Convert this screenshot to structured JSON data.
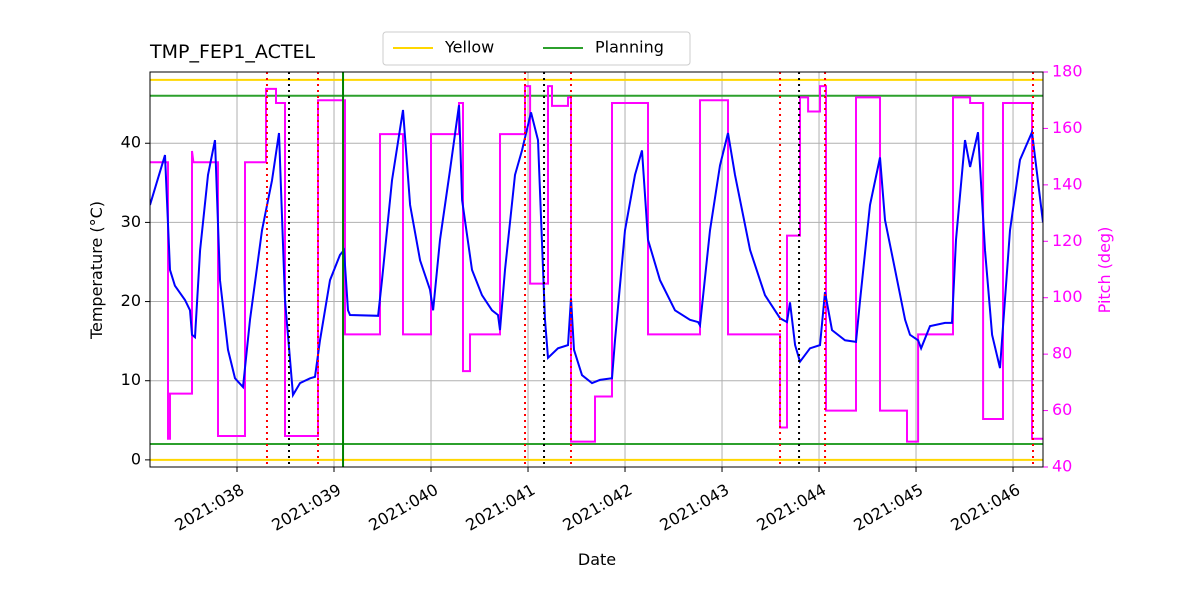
{
  "chart_data": {
    "type": "line",
    "title": "TMP_FEP1_ACTEL",
    "xlabel": "Date",
    "ylabel": "Temperature (°C)",
    "y2label": "Pitch (deg)",
    "y2color": "#ff00ff",
    "grid": true,
    "legend": "top",
    "xlim": [
      37.103,
      46.309
    ],
    "xticks": [
      {
        "value": 38,
        "label": "2021:038"
      },
      {
        "value": 39,
        "label": "2021:039"
      },
      {
        "value": 40,
        "label": "2021:040"
      },
      {
        "value": 41,
        "label": "2021:041"
      },
      {
        "value": 42,
        "label": "2021:042"
      },
      {
        "value": 43,
        "label": "2021:043"
      },
      {
        "value": 44,
        "label": "2021:044"
      },
      {
        "value": 45,
        "label": "2021:045"
      },
      {
        "value": 46,
        "label": "2021:046"
      }
    ],
    "ylim": [
      -0.9,
      49
    ],
    "yticks": [
      0,
      10,
      20,
      30,
      40
    ],
    "y2lim": [
      40,
      180
    ],
    "y2ticks": [
      40,
      60,
      80,
      100,
      120,
      140,
      160,
      180
    ],
    "hlines": [
      {
        "name": "Yellow",
        "color": "#ffd700",
        "values": [
          0,
          48
        ]
      },
      {
        "name": "Planning",
        "color": "#2ca02c",
        "values": [
          2,
          46
        ]
      }
    ],
    "vlines": [
      {
        "color": "#ff0000",
        "style": "dotted",
        "x": [
          38.309,
          38.835,
          40.969,
          41.443,
          43.598,
          44.062,
          46.206
        ]
      },
      {
        "color": "#000000",
        "style": "dotted",
        "x": [
          38.536,
          41.165,
          43.794
        ]
      },
      {
        "color": "#008000",
        "style": "solid",
        "x": [
          39.093
        ]
      }
    ],
    "series": [
      {
        "color": "#0000ff",
        "x": [
          37.103,
          37.258,
          37.309,
          37.36,
          37.464,
          37.515,
          37.536,
          37.567,
          37.619,
          37.701,
          37.773,
          37.825,
          37.907,
          37.979,
          38.062,
          38.134,
          38.258,
          38.361,
          38.433,
          38.495,
          38.577,
          38.649,
          38.753,
          38.804,
          38.856,
          38.959,
          39.062,
          39.103,
          39.144,
          39.165,
          39.454,
          39.495,
          39.598,
          39.711,
          39.784,
          39.887,
          39.99,
          40.021,
          40.093,
          40.196,
          40.289,
          40.32,
          40.423,
          40.526,
          40.629,
          40.691,
          40.711,
          40.763,
          40.866,
          40.938,
          41.031,
          41.103,
          41.175,
          41.206,
          41.309,
          41.412,
          41.443,
          41.474,
          41.557,
          41.66,
          41.742,
          41.866,
          41.897,
          42.0,
          42.103,
          42.175,
          42.237,
          42.361,
          42.515,
          42.67,
          42.753,
          42.773,
          42.876,
          42.979,
          43.062,
          43.134,
          43.289,
          43.443,
          43.598,
          43.67,
          43.701,
          43.753,
          43.804,
          43.907,
          44.01,
          44.062,
          44.134,
          44.268,
          44.381,
          44.423,
          44.526,
          44.629,
          44.68,
          44.784,
          44.887,
          44.938,
          45.021,
          45.052,
          45.144,
          45.299,
          45.371,
          45.412,
          45.505,
          45.557,
          45.639,
          45.711,
          45.784,
          45.866,
          45.969,
          46.072,
          46.196,
          46.309
        ],
        "values": [
          32.2,
          38.5,
          24,
          22,
          20.2,
          18.9,
          15.8,
          15.5,
          26.5,
          36,
          40.4,
          22.7,
          13.9,
          10.3,
          9.2,
          17.7,
          29,
          35.3,
          41.3,
          20.2,
          8.2,
          9.7,
          10.3,
          10.5,
          15.1,
          22.7,
          25.9,
          26.5,
          18.9,
          18.3,
          18.2,
          22.7,
          35.3,
          44.2,
          32.2,
          25.2,
          21.5,
          18.9,
          27.8,
          36.6,
          44.8,
          32.8,
          24,
          20.8,
          18.9,
          18.3,
          16.4,
          24,
          36,
          39.1,
          43.9,
          40.4,
          17.7,
          12.9,
          14.1,
          14.5,
          20.4,
          13.9,
          10.7,
          9.7,
          10.1,
          10.3,
          15.1,
          29,
          36,
          39.1,
          27.8,
          22.7,
          18.9,
          17.7,
          17.4,
          17,
          29,
          37.2,
          41.3,
          36,
          26.5,
          20.8,
          17.9,
          17.4,
          19.9,
          14.5,
          12.4,
          14.1,
          14.5,
          21.2,
          16.4,
          15.1,
          14.9,
          20.2,
          32.2,
          38.2,
          30.3,
          24,
          17.7,
          15.8,
          15.1,
          14.1,
          16.9,
          17.3,
          17.3,
          27.8,
          40.4,
          37,
          41.4,
          26.5,
          15.8,
          11.6,
          29,
          37.9,
          41.4,
          30
        ]
      },
      {
        "color": "#ff00ff",
        "axis": "y2",
        "x": [
          37.103,
          37.289,
          37.289,
          37.309,
          37.309,
          37.536,
          37.536,
          37.55,
          37.804,
          37.804,
          38.082,
          38.082,
          38.299,
          38.299,
          38.402,
          38.402,
          38.495,
          38.495,
          38.835,
          38.835,
          39.113,
          39.113,
          39.474,
          39.474,
          39.711,
          39.711,
          40.0,
          40.0,
          40.289,
          40.289,
          40.33,
          40.33,
          40.402,
          40.402,
          40.711,
          40.711,
          40.969,
          40.969,
          41.021,
          41.021,
          41.206,
          41.206,
          41.247,
          41.247,
          41.412,
          41.412,
          41.443,
          41.443,
          41.691,
          41.691,
          41.866,
          41.866,
          42.237,
          42.237,
          42.773,
          42.773,
          43.062,
          43.062,
          43.598,
          43.598,
          43.67,
          43.67,
          43.804,
          43.804,
          43.887,
          43.887,
          44.01,
          44.01,
          44.072,
          44.072,
          44.381,
          44.381,
          44.629,
          44.629,
          44.907,
          44.907,
          45.021,
          45.021,
          45.381,
          45.381,
          45.557,
          45.557,
          45.691,
          45.691,
          45.897,
          45.897,
          46.196,
          46.196,
          46.309
        ],
        "values": [
          148,
          148,
          50,
          50,
          66,
          66,
          152,
          148,
          148,
          51,
          51,
          148,
          148,
          174,
          174,
          169,
          169,
          51,
          51,
          170,
          170,
          87,
          87,
          158,
          158,
          87,
          87,
          158,
          158,
          169,
          169,
          74,
          74,
          87,
          87,
          158,
          158,
          175,
          175,
          105,
          105,
          175,
          175,
          168,
          168,
          171,
          171,
          49,
          49,
          65,
          65,
          169,
          169,
          87,
          87,
          170,
          170,
          87,
          87,
          54,
          54,
          122,
          122,
          171,
          171,
          166,
          166,
          175,
          175,
          60,
          60,
          171,
          171,
          60,
          60,
          49,
          49,
          87,
          87,
          171,
          171,
          169,
          169,
          57,
          57,
          169,
          169,
          50,
          50
        ]
      }
    ]
  }
}
